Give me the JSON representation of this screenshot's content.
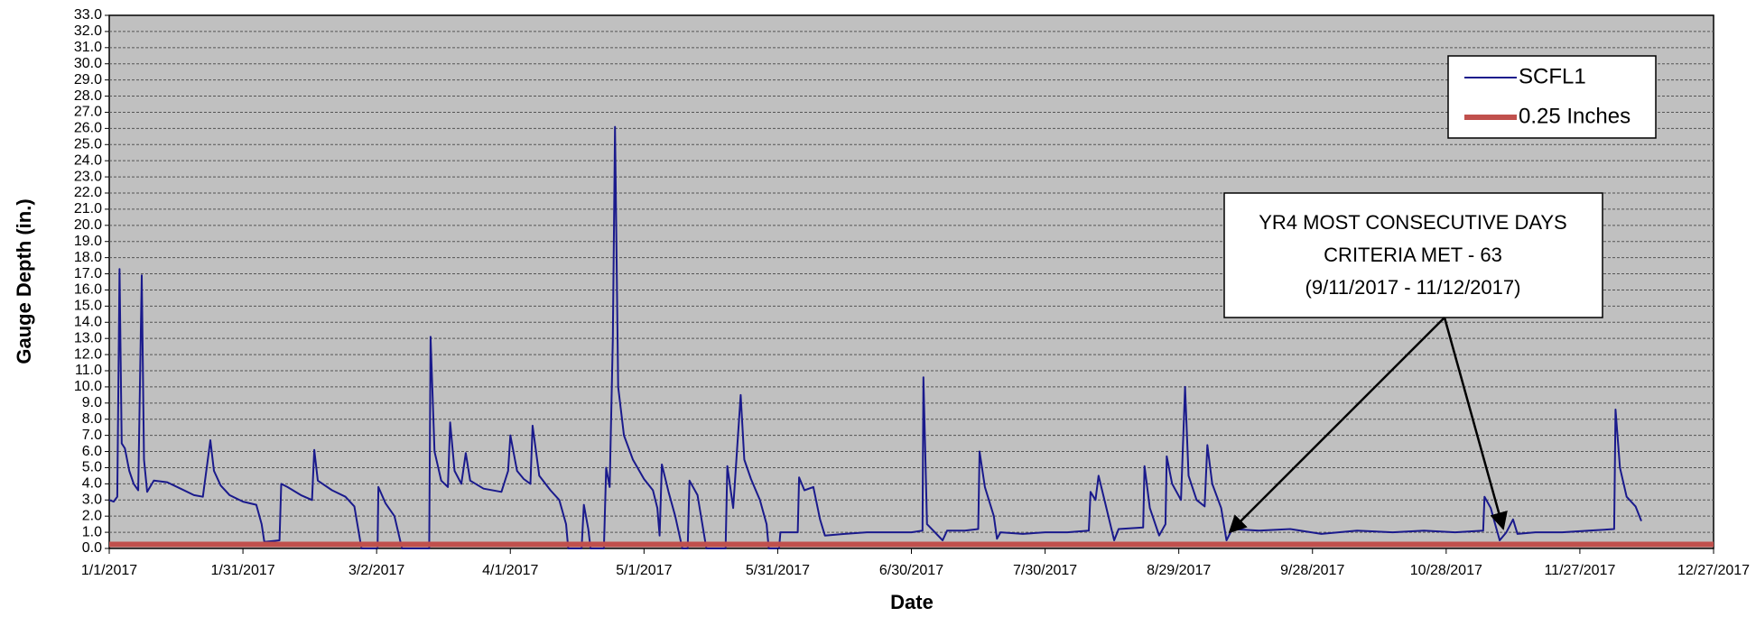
{
  "chart_data": {
    "type": "line",
    "xlabel": "Date",
    "ylabel": "Gauge Depth (in.)",
    "annotation": [
      "YR4 MOST CONSECUTIVE DAYS",
      "CRITERIA MET - 63",
      "(9/11/2017 - 11/12/2017)"
    ],
    "xlim": [
      0,
      360
    ],
    "xticks": [
      {
        "value": 0,
        "label": "1/1/2017"
      },
      {
        "value": 30,
        "label": "1/31/2017"
      },
      {
        "value": 60,
        "label": "3/2/2017"
      },
      {
        "value": 90,
        "label": "4/1/2017"
      },
      {
        "value": 120,
        "label": "5/1/2017"
      },
      {
        "value": 150,
        "label": "5/31/2017"
      },
      {
        "value": 180,
        "label": "6/30/2017"
      },
      {
        "value": 210,
        "label": "7/30/2017"
      },
      {
        "value": 240,
        "label": "8/29/2017"
      },
      {
        "value": 270,
        "label": "9/28/2017"
      },
      {
        "value": 300,
        "label": "10/28/2017"
      },
      {
        "value": 330,
        "label": "11/27/2017"
      },
      {
        "value": 360,
        "label": "12/27/2017"
      }
    ],
    "ylim": [
      0,
      33
    ],
    "yticks": [
      {
        "value": 0,
        "label": "0.0"
      },
      {
        "value": 1,
        "label": "1.0"
      },
      {
        "value": 2,
        "label": "2.0"
      },
      {
        "value": 3,
        "label": "3.0"
      },
      {
        "value": 4,
        "label": "4.0"
      },
      {
        "value": 5,
        "label": "5.0"
      },
      {
        "value": 6,
        "label": "6.0"
      },
      {
        "value": 7,
        "label": "7.0"
      },
      {
        "value": 8,
        "label": "8.0"
      },
      {
        "value": 9,
        "label": "9.0"
      },
      {
        "value": 10,
        "label": "10.0"
      },
      {
        "value": 11,
        "label": "11.0"
      },
      {
        "value": 12,
        "label": "12.0"
      },
      {
        "value": 13,
        "label": "13.0"
      },
      {
        "value": 14,
        "label": "14.0"
      },
      {
        "value": 15,
        "label": "15.0"
      },
      {
        "value": 16,
        "label": "16.0"
      },
      {
        "value": 17,
        "label": "17.0"
      },
      {
        "value": 18,
        "label": "18.0"
      },
      {
        "value": 19,
        "label": "19.0"
      },
      {
        "value": 20,
        "label": "20.0"
      },
      {
        "value": 21,
        "label": "21.0"
      },
      {
        "value": 22,
        "label": "22.0"
      },
      {
        "value": 23,
        "label": "23.0"
      },
      {
        "value": 24,
        "label": "24.0"
      },
      {
        "value": 25,
        "label": "25.0"
      },
      {
        "value": 26,
        "label": "26.0"
      },
      {
        "value": 27,
        "label": "27.0"
      },
      {
        "value": 28,
        "label": "28.0"
      },
      {
        "value": 29,
        "label": "29.0"
      },
      {
        "value": 30,
        "label": "30.0"
      },
      {
        "value": 31,
        "label": "31.0"
      },
      {
        "value": 32,
        "label": "32.0"
      },
      {
        "value": 33,
        "label": "33.0"
      }
    ],
    "grid": true,
    "legend": "upper right",
    "series": [
      {
        "name": "SCFL1",
        "color": "#1a1a8c",
        "width": 2,
        "x": [
          0,
          1,
          1.8,
          2.3,
          2.8,
          3.5,
          4.5,
          5.5,
          6.5,
          7.3,
          7.8,
          8.5,
          10,
          13,
          16,
          19,
          21,
          22.7,
          23.5,
          25,
          27,
          30,
          33,
          34.2,
          34.8,
          38.2,
          38.6,
          40,
          43,
          45.5,
          46,
          46.8,
          50,
          53,
          55,
          56.6,
          60.2,
          60.4,
          62,
          64,
          65.7,
          71.8,
          72.1,
          73,
          74.5,
          76,
          76.5,
          77.5,
          79,
          80,
          81,
          84,
          88,
          89.5,
          90,
          91.5,
          93,
          94.5,
          95,
          96.5,
          99,
          101,
          102.5,
          103,
          106,
          106.5,
          107.5,
          108,
          111,
          111.5,
          112.3,
          113,
          113.5,
          114.2,
          115.5,
          117.5,
          120,
          122,
          123,
          123.5,
          124,
          125.5,
          127,
          128.6,
          129.8,
          130.2,
          132,
          134,
          138.3,
          138.7,
          140,
          141.7,
          142.5,
          144,
          146,
          147.5,
          148,
          150.3,
          150.6,
          154.5,
          154.8,
          156,
          158,
          159.5,
          160.6,
          165,
          170,
          175,
          180,
          182.5,
          182.7,
          183.5,
          187,
          188,
          192,
          195,
          195.3,
          196.5,
          198.5,
          199.2,
          200,
          205,
          210,
          215,
          219.8,
          220.2,
          221.3,
          222,
          223.5,
          225.5,
          226.5,
          232,
          232.3,
          233.5,
          235.6,
          237,
          237.3,
          238.5,
          240.5,
          241.4,
          242.2,
          244,
          245.8,
          246.4,
          247.5,
          249.5,
          250.7,
          252,
          258,
          265,
          272,
          280,
          288,
          295,
          302,
          308.3,
          308.6,
          310,
          311,
          312,
          313.5,
          315,
          316,
          320,
          326,
          332,
          337.7,
          338,
          339,
          340.5,
          342.5,
          343.8
        ],
        "values": [
          3.0,
          2.9,
          3.2,
          17.3,
          6.5,
          6.2,
          4.8,
          4.0,
          3.6,
          16.9,
          5.5,
          3.5,
          4.2,
          4.1,
          3.7,
          3.3,
          3.2,
          6.7,
          4.8,
          3.9,
          3.3,
          2.9,
          2.7,
          1.5,
          0.4,
          0.5,
          4.0,
          3.8,
          3.3,
          3.0,
          6.1,
          4.2,
          3.6,
          3.2,
          2.6,
          0.0,
          0.0,
          3.8,
          2.8,
          2.0,
          0.0,
          0.0,
          13.1,
          6.0,
          4.2,
          3.8,
          7.8,
          4.8,
          4.0,
          5.9,
          4.2,
          3.7,
          3.5,
          4.8,
          7.0,
          4.8,
          4.3,
          4.0,
          7.6,
          4.5,
          3.6,
          3.0,
          1.5,
          0.0,
          0.0,
          2.7,
          1.2,
          0.0,
          0.0,
          5.0,
          3.8,
          13.0,
          26.1,
          10.0,
          7.0,
          5.5,
          4.3,
          3.6,
          2.5,
          0.8,
          5.2,
          3.5,
          2.0,
          0.0,
          0.0,
          4.2,
          3.3,
          0.0,
          0.0,
          5.1,
          2.5,
          9.5,
          5.5,
          4.3,
          3.0,
          1.5,
          0.0,
          0.0,
          1.0,
          1.0,
          4.4,
          3.6,
          3.8,
          1.8,
          0.8,
          0.9,
          1.0,
          1.0,
          1.0,
          1.1,
          10.6,
          1.5,
          0.5,
          1.1,
          1.1,
          1.2,
          6.0,
          3.8,
          2.0,
          0.6,
          1.0,
          0.9,
          1.0,
          1.0,
          1.1,
          3.5,
          3.0,
          4.5,
          2.8,
          0.5,
          1.2,
          1.3,
          5.1,
          2.5,
          0.8,
          1.5,
          5.7,
          4.0,
          3.0,
          10.0,
          4.5,
          3.0,
          2.6,
          6.4,
          4.0,
          2.5,
          0.5,
          1.2,
          1.1,
          1.2,
          0.9,
          1.1,
          1.0,
          1.1,
          1.0,
          1.1,
          3.2,
          2.5,
          1.5,
          0.5,
          1.0,
          1.8,
          0.9,
          1.0,
          1.0,
          1.1,
          1.2,
          8.6,
          5.0,
          3.2,
          2.6,
          1.7
        ]
      },
      {
        "name": "0.25 Inches",
        "color": "#c0504d",
        "width": 6,
        "x": [
          0,
          360
        ],
        "values": [
          0.25,
          0.25
        ]
      }
    ]
  }
}
